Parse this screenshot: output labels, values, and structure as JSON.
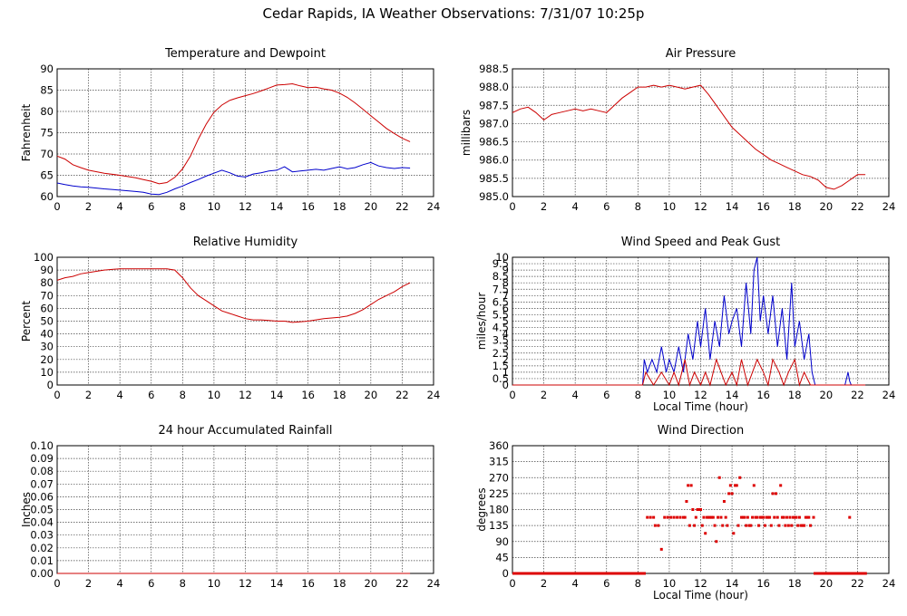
{
  "page_title": "Cedar Rapids, IA Weather Observations: 7/31/07 10:25p",
  "chart_data": [
    {
      "id": "temp",
      "type": "line",
      "title": "Temperature and Dewpoint",
      "xlabel": "",
      "ylabel": "Fahrenheit",
      "xlim": [
        0,
        24
      ],
      "ylim": [
        60,
        90
      ],
      "xticks": [
        "0",
        "2",
        "4",
        "6",
        "8",
        "10",
        "12",
        "14",
        "16",
        "18",
        "20",
        "22",
        "24"
      ],
      "yticks": [
        "60",
        "65",
        "70",
        "75",
        "80",
        "85",
        "90"
      ],
      "grid": true,
      "series": [
        {
          "color": "#cc0000",
          "x": [
            0,
            0.5,
            1,
            1.5,
            2,
            3,
            4,
            5,
            5.5,
            6,
            6.5,
            7,
            7.5,
            8,
            8.5,
            9,
            9.5,
            10,
            10.5,
            11,
            11.5,
            12,
            12.5,
            13,
            13.5,
            14,
            14.5,
            15,
            15.5,
            16,
            16.5,
            17,
            17.5,
            18,
            18.5,
            19,
            19.5,
            20,
            20.5,
            21,
            21.5,
            22,
            22.5
          ],
          "y": [
            69.5,
            68.8,
            67.5,
            66.8,
            66.2,
            65.5,
            65,
            64.4,
            64,
            63.6,
            63,
            63.3,
            64.5,
            66.5,
            69.5,
            73.5,
            77,
            79.8,
            81.5,
            82.6,
            83.2,
            83.7,
            84.2,
            84.8,
            85.5,
            86.2,
            86.3,
            86.5,
            86,
            85.6,
            85.7,
            85.3,
            85,
            84.3,
            83.3,
            82,
            80.5,
            79,
            77.5,
            76,
            74.8,
            73.7,
            72.9
          ]
        },
        {
          "color": "#0000cc",
          "x": [
            0,
            0.5,
            1,
            1.5,
            2,
            3,
            4,
            5,
            5.5,
            6,
            6.5,
            7,
            7.5,
            8,
            8.5,
            9,
            9.5,
            10,
            10.5,
            11,
            11.5,
            12,
            12.5,
            13,
            13.5,
            14,
            14.5,
            15,
            15.5,
            16,
            16.5,
            17,
            17.5,
            18,
            18.5,
            19,
            19.5,
            20,
            20.5,
            21,
            21.5,
            22,
            22.5
          ],
          "y": [
            63.2,
            62.8,
            62.5,
            62.3,
            62.2,
            61.8,
            61.5,
            61.2,
            61,
            60.6,
            60.5,
            61,
            61.8,
            62.5,
            63.3,
            64,
            64.8,
            65.5,
            66.2,
            65.6,
            64.8,
            64.6,
            65.3,
            65.6,
            66,
            66.2,
            67,
            65.8,
            66,
            66.2,
            66.4,
            66.2,
            66.6,
            67,
            66.5,
            66.8,
            67.5,
            68,
            67.2,
            66.8,
            66.6,
            66.8,
            66.7
          ]
        }
      ]
    },
    {
      "id": "press",
      "type": "line",
      "title": "Air Pressure",
      "xlabel": "",
      "ylabel": "millibars",
      "xlim": [
        0,
        24
      ],
      "ylim": [
        985.0,
        988.5
      ],
      "xticks": [
        "0",
        "2",
        "4",
        "6",
        "8",
        "10",
        "12",
        "14",
        "16",
        "18",
        "20",
        "22",
        "24"
      ],
      "yticks": [
        "985.0",
        "985.5",
        "986.0",
        "986.5",
        "987.0",
        "987.5",
        "988.0",
        "988.5"
      ],
      "grid": true,
      "series": [
        {
          "color": "#cc0000",
          "x": [
            0,
            0.5,
            1,
            1.5,
            2,
            2.5,
            3,
            3.5,
            4,
            4.5,
            5,
            5.5,
            6,
            6.5,
            7,
            7.5,
            8,
            8.5,
            9,
            9.5,
            10,
            10.5,
            11,
            11.5,
            12,
            12.5,
            13,
            13.5,
            14,
            14.5,
            15,
            15.5,
            16,
            16.5,
            17,
            17.5,
            18,
            18.5,
            19,
            19.5,
            20,
            20.5,
            21,
            21.5,
            22,
            22.5
          ],
          "y": [
            987.3,
            987.4,
            987.45,
            987.3,
            987.1,
            987.25,
            987.3,
            987.35,
            987.4,
            987.35,
            987.4,
            987.35,
            987.3,
            987.5,
            987.7,
            987.85,
            988.0,
            988.0,
            988.05,
            988.0,
            988.05,
            988.0,
            987.95,
            988.0,
            988.05,
            987.8,
            987.5,
            987.2,
            986.9,
            986.7,
            986.5,
            986.3,
            986.15,
            986.0,
            985.9,
            985.8,
            985.7,
            985.6,
            985.55,
            985.45,
            985.25,
            985.2,
            985.3,
            985.45,
            985.6,
            985.6
          ]
        }
      ]
    },
    {
      "id": "rh",
      "type": "line",
      "title": "Relative Humidity",
      "xlabel": "",
      "ylabel": "Percent",
      "xlim": [
        0,
        24
      ],
      "ylim": [
        0,
        100
      ],
      "xticks": [
        "0",
        "2",
        "4",
        "6",
        "8",
        "10",
        "12",
        "14",
        "16",
        "18",
        "20",
        "22",
        "24"
      ],
      "yticks": [
        "0",
        "10",
        "20",
        "30",
        "40",
        "50",
        "60",
        "70",
        "80",
        "90",
        "100"
      ],
      "grid": true,
      "series": [
        {
          "color": "#cc0000",
          "x": [
            0,
            0.5,
            1,
            1.5,
            2,
            2.5,
            3,
            3.5,
            4,
            5,
            6,
            7,
            7.5,
            8,
            8.5,
            9,
            9.5,
            10,
            10.5,
            11,
            11.5,
            12,
            12.5,
            13,
            13.5,
            14,
            14.5,
            15,
            15.5,
            16,
            16.5,
            17,
            17.5,
            18,
            18.5,
            19,
            19.5,
            20,
            20.5,
            21,
            21.5,
            22,
            22.5
          ],
          "y": [
            82,
            84,
            85,
            87,
            88,
            89,
            90,
            90.5,
            91,
            91,
            91,
            91,
            90,
            84,
            76,
            70,
            66,
            62,
            58,
            56,
            54,
            52,
            51,
            51,
            50.5,
            50,
            50,
            49,
            49.5,
            50,
            51,
            52,
            52.5,
            53,
            54,
            56,
            59,
            63,
            67,
            70,
            73,
            77,
            80
          ]
        }
      ]
    },
    {
      "id": "wind",
      "type": "line",
      "title": "Wind Speed and Peak Gust",
      "xlabel": "Local Time (hour)",
      "ylabel": "miles/hour",
      "xlim": [
        0,
        24
      ],
      "ylim": [
        0,
        10
      ],
      "xticks": [
        "0",
        "2",
        "4",
        "6",
        "8",
        "10",
        "12",
        "14",
        "16",
        "18",
        "20",
        "22",
        "24"
      ],
      "yticks": [
        "0",
        "0.5",
        "1",
        "1.5",
        "2",
        "2.5",
        "3",
        "3.5",
        "4",
        "4.5",
        "5",
        "5.5",
        "6",
        "6.5",
        "7",
        "7.5",
        "8",
        "8.5",
        "9",
        "9.5",
        "10"
      ],
      "grid": true,
      "series": [
        {
          "color": "#0000cc",
          "x": [
            0,
            8.3,
            8.4,
            8.6,
            8.9,
            9.2,
            9.5,
            9.8,
            10,
            10.3,
            10.6,
            10.9,
            11.2,
            11.5,
            11.8,
            12,
            12.3,
            12.6,
            12.9,
            13.2,
            13.5,
            13.8,
            14,
            14.3,
            14.6,
            14.9,
            15.2,
            15.4,
            15.6,
            15.8,
            16,
            16.3,
            16.6,
            16.9,
            17.2,
            17.5,
            17.8,
            18,
            18.3,
            18.6,
            18.9,
            19.1,
            19.3,
            21.2,
            21.4,
            21.5,
            21.6,
            22.5
          ],
          "y": [
            0,
            0,
            2,
            1,
            2,
            1,
            3,
            1,
            2,
            1,
            3,
            1,
            4,
            2,
            5,
            3,
            6,
            2,
            5,
            3,
            7,
            4,
            5,
            6,
            3,
            8,
            4,
            9,
            10,
            5,
            7,
            4,
            7,
            3,
            6,
            2,
            8,
            3,
            5,
            2,
            4,
            1,
            0,
            0,
            1,
            0.3,
            0,
            0
          ]
        },
        {
          "color": "#cc0000",
          "x": [
            0,
            8.3,
            8.5,
            9,
            9.5,
            10,
            10.3,
            10.6,
            11,
            11.3,
            11.6,
            12,
            12.3,
            12.6,
            13,
            13.3,
            13.6,
            14,
            14.3,
            14.6,
            15,
            15.3,
            15.6,
            16,
            16.3,
            16.6,
            17,
            17.3,
            17.6,
            18,
            18.3,
            18.6,
            19,
            19.3,
            22.5
          ],
          "y": [
            0,
            0,
            1,
            0,
            1,
            0,
            1,
            0,
            2,
            0,
            1,
            0,
            1,
            0,
            2,
            1,
            0,
            1,
            0,
            2,
            0,
            1,
            2,
            1,
            0,
            2,
            1,
            0,
            1,
            2,
            0,
            1,
            0,
            0,
            0
          ]
        }
      ]
    },
    {
      "id": "rain",
      "type": "line",
      "title": "24 hour Accumulated Rainfall",
      "xlabel": "",
      "ylabel": "Inches",
      "xlim": [
        0,
        24
      ],
      "ylim": [
        0,
        0.1
      ],
      "xticks": [
        "0",
        "2",
        "4",
        "6",
        "8",
        "10",
        "12",
        "14",
        "16",
        "18",
        "20",
        "22",
        "24"
      ],
      "yticks": [
        "0.00",
        "0.01",
        "0.02",
        "0.03",
        "0.04",
        "0.05",
        "0.06",
        "0.07",
        "0.08",
        "0.09",
        "0.10"
      ],
      "grid": true,
      "series": [
        {
          "color": "#cc0000",
          "x": [
            0,
            22.5
          ],
          "y": [
            0,
            0
          ]
        }
      ]
    },
    {
      "id": "dir",
      "type": "scatter",
      "title": "Wind Direction",
      "xlabel": "Local Time (hour)",
      "ylabel": "degrees",
      "xlim": [
        0,
        24
      ],
      "ylim": [
        0,
        360
      ],
      "xticks": [
        "0",
        "2",
        "4",
        "6",
        "8",
        "10",
        "12",
        "14",
        "16",
        "18",
        "20",
        "22",
        "24"
      ],
      "yticks": [
        "0",
        "45",
        "90",
        "135",
        "180",
        "225",
        "270",
        "315",
        "360"
      ],
      "grid": true,
      "series": [
        {
          "color": "#dd0000",
          "zero_ranges": [
            [
              0,
              8.5
            ],
            [
              19.2,
              22.6
            ]
          ],
          "x": [
            8.6,
            8.8,
            9.0,
            9.1,
            9.3,
            9.5,
            9.7,
            9.9,
            10.1,
            10.3,
            10.5,
            10.7,
            10.9,
            11.0,
            11.1,
            11.2,
            11.3,
            11.4,
            11.5,
            11.6,
            11.7,
            11.8,
            11.9,
            12.0,
            12.1,
            12.2,
            12.3,
            12.4,
            12.5,
            12.6,
            12.7,
            12.8,
            12.9,
            13.0,
            13.1,
            13.2,
            13.3,
            13.4,
            13.5,
            13.6,
            13.7,
            13.8,
            13.9,
            14.0,
            14.1,
            14.2,
            14.3,
            14.4,
            14.5,
            14.6,
            14.7,
            14.8,
            14.9,
            15.0,
            15.1,
            15.2,
            15.3,
            15.4,
            15.5,
            15.6,
            15.7,
            15.8,
            15.9,
            16.0,
            16.1,
            16.2,
            16.3,
            16.4,
            16.5,
            16.6,
            16.7,
            16.8,
            16.9,
            17.0,
            17.1,
            17.2,
            17.3,
            17.4,
            17.5,
            17.6,
            17.7,
            17.8,
            17.9,
            18.0,
            18.1,
            18.2,
            18.3,
            18.4,
            18.5,
            18.6,
            18.7,
            18.8,
            18.9,
            19.0,
            19.2,
            21.5
          ],
          "y": [
            158,
            158,
            158,
            135,
            135,
            68,
            158,
            158,
            158,
            158,
            158,
            158,
            158,
            158,
            203,
            248,
            135,
            248,
            180,
            135,
            158,
            180,
            180,
            180,
            135,
            158,
            113,
            158,
            158,
            158,
            158,
            158,
            135,
            90,
            158,
            270,
            158,
            135,
            203,
            158,
            135,
            225,
            248,
            225,
            113,
            248,
            248,
            135,
            270,
            158,
            158,
            158,
            135,
            158,
            135,
            135,
            158,
            248,
            158,
            158,
            135,
            158,
            158,
            158,
            135,
            158,
            158,
            158,
            135,
            225,
            158,
            225,
            158,
            135,
            248,
            158,
            158,
            135,
            158,
            135,
            158,
            135,
            158,
            158,
            158,
            135,
            158,
            135,
            135,
            135,
            158,
            158,
            158,
            135,
            158,
            158
          ]
        }
      ]
    }
  ]
}
